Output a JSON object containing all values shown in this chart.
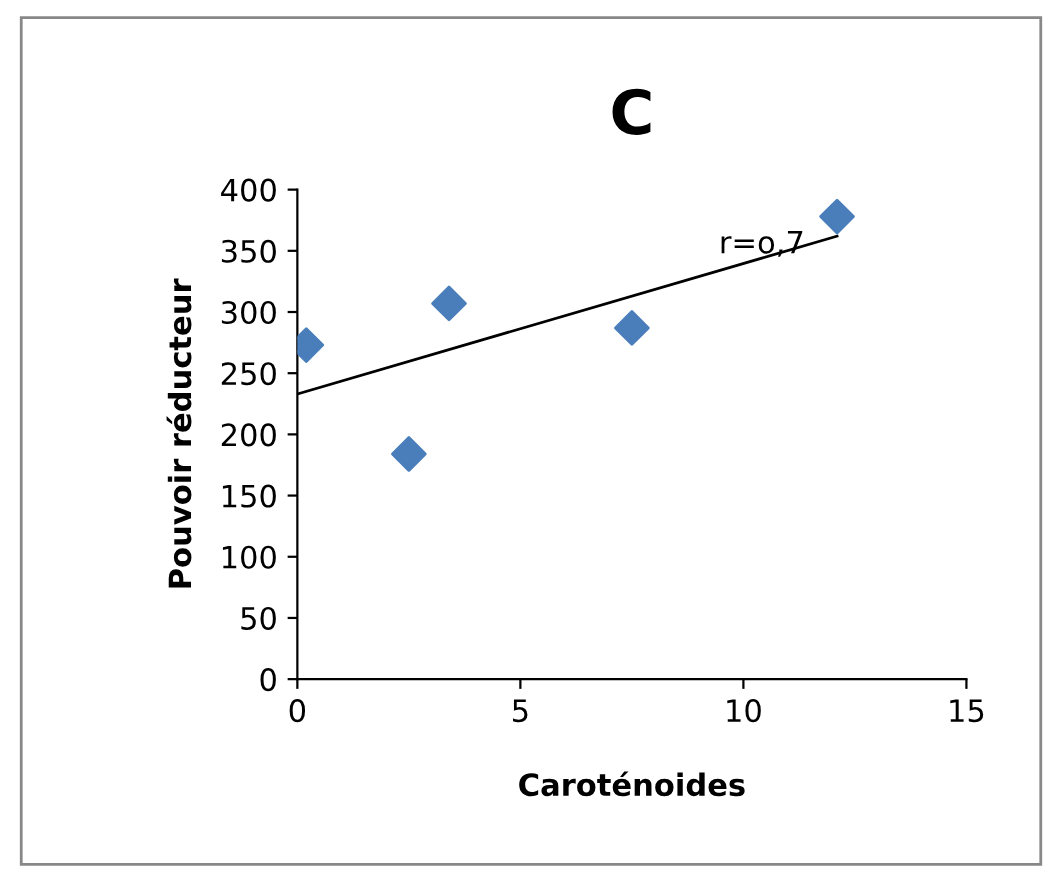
{
  "chart_data": {
    "type": "scatter",
    "title": "C",
    "xlabel": "Caroténoides",
    "ylabel": "Pouvoir réducteur",
    "xlim": [
      0,
      15
    ],
    "xticks": [
      0,
      5,
      10,
      15
    ],
    "ylim": [
      0,
      400
    ],
    "yticks": [
      0,
      50,
      100,
      150,
      200,
      250,
      300,
      350,
      400
    ],
    "grid": false,
    "legend": false,
    "series": [
      {
        "marker": "diamond",
        "color": "#4a7ebb",
        "x": [
          0.2,
          2.5,
          3.4,
          7.5,
          12.1
        ],
        "values": [
          273,
          184,
          307,
          287,
          378
        ]
      },
      {
        "type": "line",
        "color": "#000000",
        "x": [
          0,
          12.1
        ],
        "values": [
          233,
          362
        ]
      }
    ],
    "annotations": [
      "r=o,7"
    ]
  }
}
